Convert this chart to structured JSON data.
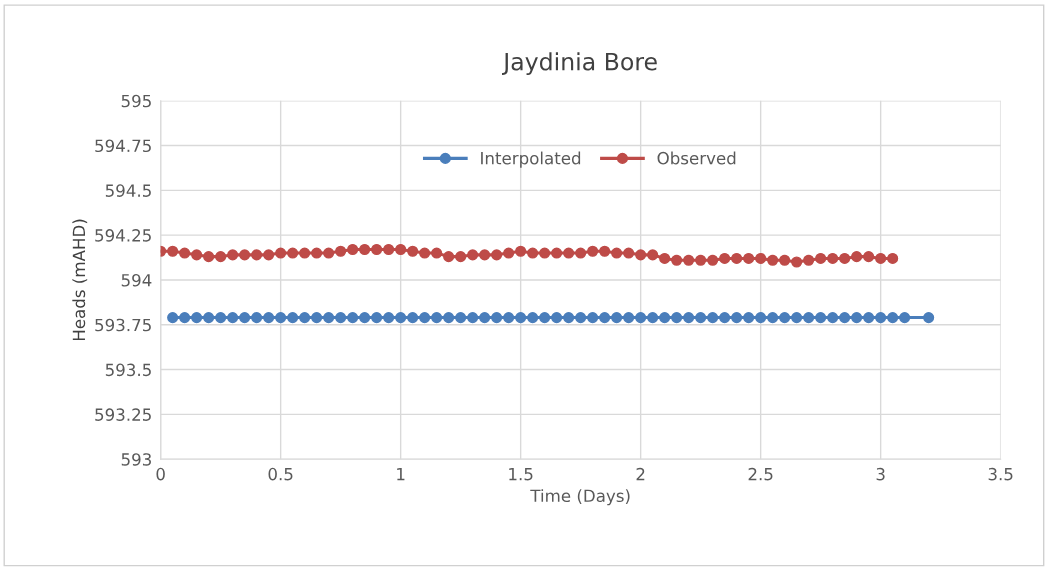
{
  "chart_data": {
    "type": "line",
    "title": "Jaydinia Bore",
    "xlabel": "Time (Days)",
    "ylabel": "Heads (mAHD)",
    "xlim": [
      0,
      3.5
    ],
    "xticks": [
      0,
      0.5,
      1,
      1.5,
      2,
      2.5,
      3,
      3.5
    ],
    "ylim": [
      593,
      595
    ],
    "yticks": [
      593,
      593.25,
      593.5,
      593.75,
      594,
      594.25,
      594.5,
      594.75,
      595
    ],
    "grid": true,
    "legend": "top",
    "marker": "circle",
    "line_style": "solid",
    "series": [
      {
        "name": "Interpolated",
        "color": "#4a7ebb",
        "x": [
          0.05,
          0.1,
          0.15,
          0.2,
          0.25,
          0.3,
          0.35,
          0.4,
          0.45,
          0.5,
          0.55,
          0.6,
          0.65,
          0.7,
          0.75,
          0.8,
          0.85,
          0.9,
          0.95,
          1.0,
          1.05,
          1.1,
          1.15,
          1.2,
          1.25,
          1.3,
          1.35,
          1.4,
          1.45,
          1.5,
          1.55,
          1.6,
          1.65,
          1.7,
          1.75,
          1.8,
          1.85,
          1.9,
          1.95,
          2.0,
          2.05,
          2.1,
          2.15,
          2.2,
          2.25,
          2.3,
          2.35,
          2.4,
          2.45,
          2.5,
          2.55,
          2.6,
          2.65,
          2.7,
          2.75,
          2.8,
          2.85,
          2.9,
          2.95,
          3.0,
          3.05,
          3.1,
          3.2
        ],
        "values": [
          593.79,
          593.79,
          593.79,
          593.79,
          593.79,
          593.79,
          593.79,
          593.79,
          593.79,
          593.79,
          593.79,
          593.79,
          593.79,
          593.79,
          593.79,
          593.79,
          593.79,
          593.79,
          593.79,
          593.79,
          593.79,
          593.79,
          593.79,
          593.79,
          593.79,
          593.79,
          593.79,
          593.79,
          593.79,
          593.79,
          593.79,
          593.79,
          593.79,
          593.79,
          593.79,
          593.79,
          593.79,
          593.79,
          593.79,
          593.79,
          593.79,
          593.79,
          593.79,
          593.79,
          593.79,
          593.79,
          593.79,
          593.79,
          593.79,
          593.79,
          593.79,
          593.79,
          593.79,
          593.79,
          593.79,
          593.79,
          593.79,
          593.79,
          593.79,
          593.79,
          593.79,
          593.79,
          593.79
        ]
      },
      {
        "name": "Observed",
        "color": "#be4b48",
        "x": [
          0,
          0.05,
          0.1,
          0.15,
          0.2,
          0.25,
          0.3,
          0.35,
          0.4,
          0.45,
          0.5,
          0.55,
          0.6,
          0.65,
          0.7,
          0.75,
          0.8,
          0.85,
          0.9,
          0.95,
          1.0,
          1.05,
          1.1,
          1.15,
          1.2,
          1.25,
          1.3,
          1.35,
          1.4,
          1.45,
          1.5,
          1.55,
          1.6,
          1.65,
          1.7,
          1.75,
          1.8,
          1.85,
          1.9,
          1.95,
          2.0,
          2.05,
          2.1,
          2.15,
          2.2,
          2.25,
          2.3,
          2.35,
          2.4,
          2.45,
          2.5,
          2.55,
          2.6,
          2.65,
          2.7,
          2.75,
          2.8,
          2.85,
          2.9,
          2.95,
          3.0,
          3.05
        ],
        "values": [
          594.16,
          594.16,
          594.15,
          594.14,
          594.13,
          594.13,
          594.14,
          594.14,
          594.14,
          594.14,
          594.15,
          594.15,
          594.15,
          594.15,
          594.15,
          594.16,
          594.17,
          594.17,
          594.17,
          594.17,
          594.17,
          594.16,
          594.15,
          594.15,
          594.13,
          594.13,
          594.14,
          594.14,
          594.14,
          594.15,
          594.16,
          594.15,
          594.15,
          594.15,
          594.15,
          594.15,
          594.16,
          594.16,
          594.15,
          594.15,
          594.14,
          594.14,
          594.12,
          594.11,
          594.11,
          594.11,
          594.11,
          594.12,
          594.12,
          594.12,
          594.12,
          594.11,
          594.11,
          594.1,
          594.11,
          594.12,
          594.12,
          594.12,
          594.13,
          594.13,
          594.12,
          594.12
        ]
      }
    ]
  }
}
